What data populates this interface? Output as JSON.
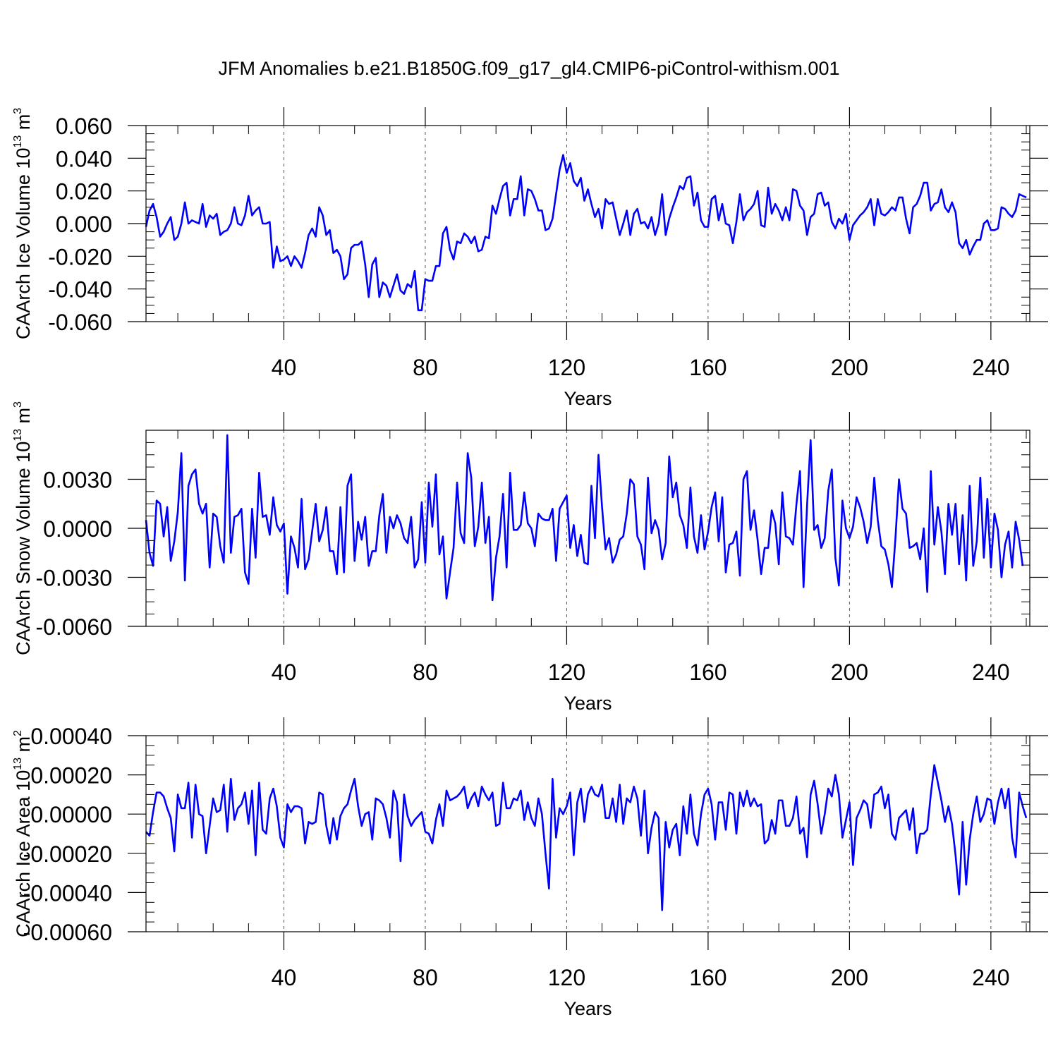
{
  "figure_title": "JFM Anomalies b.e21.B1850G.f09_g17_gl4.CMIP6-piControl-withism.001",
  "chart_data": [
    {
      "type": "line",
      "title": "JFM Anomalies b.e21.B1850G.f09_g17_gl4.CMIP6-piControl-withism.001",
      "xlabel": "Years",
      "ylabel_main": "CAArch Ice Volume 10",
      "ylabel_exp": "13",
      "ylabel_unit": "m",
      "ylabel_unit_exp": "3",
      "xlim": [
        1,
        251
      ],
      "ylim": [
        -0.06,
        0.06
      ],
      "x_ticks": [
        40,
        80,
        120,
        160,
        200,
        240
      ],
      "x_tick_labels": [
        "40",
        "80",
        "120",
        "160",
        "200",
        "240"
      ],
      "y_ticks": [
        -0.06,
        -0.04,
        -0.02,
        0.0,
        0.02,
        0.04,
        0.06
      ],
      "y_tick_labels": [
        "-0.060",
        "-0.040",
        "-0.020",
        "0.000",
        "0.020",
        "0.040",
        "0.060"
      ],
      "line_color": "#0000ff",
      "x_start": 1,
      "values": [
        -0.002,
        0.008,
        0.012,
        0.004,
        -0.008,
        -0.005,
        0.0,
        0.004,
        -0.01,
        -0.008,
        0.0,
        0.013,
        0.0,
        0.002,
        0.001,
        0.0,
        0.012,
        -0.002,
        0.005,
        0.003,
        0.006,
        -0.007,
        -0.005,
        -0.004,
        0.0,
        0.01,
        0.0,
        -0.001,
        0.005,
        0.017,
        0.005,
        0.008,
        0.01,
        0.0,
        0.0,
        0.001,
        -0.027,
        -0.014,
        -0.023,
        -0.022,
        -0.02,
        -0.026,
        -0.02,
        -0.023,
        -0.027,
        -0.018,
        -0.007,
        -0.003,
        -0.008,
        0.01,
        0.005,
        -0.007,
        -0.004,
        -0.018,
        -0.016,
        -0.02,
        -0.034,
        -0.031,
        -0.015,
        -0.013,
        -0.013,
        -0.011,
        -0.025,
        -0.045,
        -0.025,
        -0.021,
        -0.045,
        -0.036,
        -0.038,
        -0.045,
        -0.038,
        -0.031,
        -0.041,
        -0.043,
        -0.037,
        -0.039,
        -0.029,
        -0.053,
        -0.053,
        -0.034,
        -0.035,
        -0.035,
        -0.026,
        -0.026,
        -0.006,
        -0.002,
        -0.016,
        -0.022,
        -0.011,
        -0.012,
        -0.006,
        -0.008,
        -0.012,
        -0.008,
        -0.017,
        -0.016,
        -0.008,
        -0.009,
        0.011,
        0.006,
        0.015,
        0.023,
        0.025,
        0.005,
        0.015,
        0.015,
        0.029,
        0.005,
        0.021,
        0.02,
        0.015,
        0.008,
        0.008,
        -0.004,
        -0.003,
        0.003,
        0.018,
        0.033,
        0.042,
        0.031,
        0.037,
        0.026,
        0.023,
        0.028,
        0.014,
        0.021,
        0.012,
        0.004,
        0.009,
        -0.003,
        0.015,
        0.012,
        0.013,
        0.003,
        -0.007,
        0.0,
        0.008,
        -0.007,
        0.006,
        0.009,
        0.0,
        0.001,
        -0.003,
        0.004,
        -0.007,
        0.0,
        0.018,
        -0.007,
        0.003,
        0.01,
        0.016,
        0.023,
        0.021,
        0.028,
        0.029,
        0.011,
        0.019,
        0.002,
        -0.002,
        -0.002,
        0.015,
        0.017,
        0.002,
        0.012,
        0.0,
        -0.001,
        -0.012,
        0.001,
        0.018,
        0.002,
        0.007,
        0.009,
        0.012,
        0.02,
        -0.001,
        -0.002,
        0.022,
        0.006,
        0.012,
        0.008,
        0.002,
        0.01,
        0.002,
        0.021,
        0.02,
        0.011,
        0.008,
        -0.007,
        0.004,
        0.006,
        0.018,
        0.019,
        0.011,
        0.013,
        0.001,
        -0.003,
        0.003,
        0.0,
        0.006,
        -0.01,
        -0.001,
        0.002,
        0.005,
        0.007,
        0.01,
        0.015,
        -0.001,
        0.015,
        0.006,
        0.005,
        0.007,
        0.01,
        0.008,
        0.016,
        0.016,
        0.003,
        -0.006,
        0.01,
        0.012,
        0.017,
        0.025,
        0.025,
        0.008,
        0.012,
        0.013,
        0.021,
        0.01,
        0.007,
        0.013,
        0.007,
        -0.012,
        -0.015,
        -0.01,
        -0.019,
        -0.014,
        -0.01,
        -0.01,
        0.0,
        0.002,
        -0.004,
        -0.004,
        -0.003,
        0.01,
        0.009,
        0.006,
        0.004,
        0.008,
        0.018,
        0.017,
        0.016
      ]
    },
    {
      "type": "line",
      "xlabel": "Years",
      "ylabel_main": "CAArch Snow Volume 10",
      "ylabel_exp": "13",
      "ylabel_unit": "m",
      "ylabel_unit_exp": "3",
      "xlim": [
        1,
        251
      ],
      "ylim": [
        -0.006,
        0.006
      ],
      "x_ticks": [
        40,
        80,
        120,
        160,
        200,
        240
      ],
      "x_tick_labels": [
        "40",
        "80",
        "120",
        "160",
        "200",
        "240"
      ],
      "y_ticks": [
        -0.006,
        -0.003,
        0.0,
        0.003
      ],
      "y_tick_labels": [
        "-0.0060",
        "-0.0030",
        "0.0000",
        "0.0030"
      ],
      "line_color": "#0000ff",
      "x_start": 1,
      "values": [
        0.0005,
        -0.0015,
        -0.0023,
        0.0017,
        0.0015,
        -0.0005,
        0.0013,
        -0.002,
        -0.0008,
        0.001,
        0.0046,
        -0.0032,
        0.0026,
        0.0033,
        0.0036,
        0.0015,
        0.0009,
        0.0015,
        -0.0024,
        0.0009,
        0.0007,
        -0.0011,
        -0.0021,
        0.0057,
        -0.0015,
        0.0007,
        0.0008,
        0.0012,
        -0.0027,
        -0.0034,
        0.0012,
        -0.0018,
        0.0034,
        0.0007,
        0.0008,
        -0.0004,
        0.0019,
        0.0002,
        -0.0002,
        0.0003,
        -0.004,
        -0.0005,
        -0.0012,
        -0.0024,
        0.0018,
        -0.0025,
        -0.0019,
        -0.0002,
        0.0015,
        -0.0008,
        -0.0001,
        0.0013,
        -0.0014,
        -0.0014,
        -0.0028,
        0.0013,
        -0.0027,
        0.0026,
        0.0033,
        -0.002,
        0.0004,
        -0.0007,
        0.0007,
        -0.0023,
        -0.0014,
        -0.0014,
        0.0008,
        0.0021,
        -0.0015,
        0.0007,
        0.0,
        0.0008,
        0.0003,
        -0.0006,
        -0.0009,
        0.0007,
        -0.0024,
        -0.0019,
        0.0016,
        -0.0021,
        0.0028,
        0.0001,
        0.0033,
        -0.0016,
        -0.0005,
        -0.0043,
        -0.0027,
        -0.0012,
        0.0028,
        -0.0003,
        -0.0009,
        0.0046,
        0.0031,
        -0.0011,
        0.0001,
        0.0028,
        -0.0009,
        0.0007,
        -0.0044,
        -0.0018,
        -0.0005,
        0.0021,
        -0.0024,
        0.0034,
        -0.0001,
        -0.0001,
        0.0002,
        0.0022,
        0.0003,
        0.0,
        -0.0011,
        0.0009,
        0.0006,
        0.0005,
        0.0005,
        0.0012,
        -0.002,
        0.0012,
        0.0016,
        0.002,
        -0.0012,
        0.0002,
        -0.0017,
        -0.0004,
        -0.0021,
        -0.0022,
        0.0026,
        -0.0006,
        0.0045,
        0.0013,
        -0.0013,
        -0.0006,
        -0.0021,
        -0.0016,
        -0.0007,
        -0.0005,
        0.0009,
        0.003,
        0.0027,
        -0.0005,
        -0.001,
        -0.0025,
        0.0031,
        -0.0003,
        0.0005,
        -0.0001,
        -0.0019,
        -0.0009,
        0.0044,
        0.0019,
        0.0028,
        0.0008,
        0.0002,
        -0.0012,
        0.0025,
        -0.0005,
        -0.0015,
        0.0008,
        -0.0013,
        -0.0002,
        0.0013,
        0.0022,
        -0.0008,
        0.0019,
        -0.0027,
        -0.001,
        -0.0009,
        -0.0002,
        -0.0029,
        0.003,
        0.0035,
        -0.0001,
        0.0011,
        -0.0007,
        -0.0028,
        -0.0012,
        -0.0012,
        0.0011,
        0.0003,
        -0.0022,
        0.0022,
        -0.0005,
        -0.0006,
        -0.001,
        0.0015,
        0.0035,
        -0.0036,
        0.0014,
        0.0054,
        -0.0001,
        0.0002,
        -0.0012,
        -0.0006,
        0.0023,
        0.0036,
        -0.0018,
        -0.0035,
        0.0017,
        0.0,
        -0.0006,
        0.0001,
        0.0019,
        0.0013,
        0.0004,
        -0.0009,
        0.0001,
        0.0031,
        0.0005,
        -0.0011,
        -0.0013,
        -0.0022,
        -0.0036,
        -0.0006,
        0.003,
        0.0012,
        0.0009,
        -0.0012,
        -0.0011,
        -0.0009,
        -0.0019,
        0.0,
        -0.0039,
        0.0035,
        -0.001,
        0.0013,
        -0.0002,
        -0.0028,
        0.0015,
        -0.0004,
        0.0015,
        -0.0022,
        0.0008,
        -0.0032,
        0.0026,
        -0.0023,
        -0.0008,
        0.0031,
        -0.0018,
        0.0018,
        -0.0024,
        0.0009,
        -0.0001,
        -0.003,
        -0.001,
        -0.0002,
        -0.0024,
        0.0004,
        -0.0007,
        -0.0023
      ]
    },
    {
      "type": "line",
      "xlabel": "Years",
      "ylabel_main": "CAArch Ice Area 10",
      "ylabel_exp": "13",
      "ylabel_unit": "m",
      "ylabel_unit_exp": "2",
      "xlim": [
        1,
        251
      ],
      "ylim": [
        -0.0006,
        0.0004
      ],
      "x_ticks": [
        40,
        80,
        120,
        160,
        200,
        240
      ],
      "x_tick_labels": [
        "40",
        "80",
        "120",
        "160",
        "200",
        "240"
      ],
      "y_ticks": [
        -0.0006,
        -0.0004,
        -0.0002,
        0.0,
        0.0002,
        0.0004
      ],
      "y_tick_labels": [
        "-0.00060",
        "-0.00040",
        "-0.00020",
        "0.00000",
        "0.00020",
        "0.00040"
      ],
      "line_color": "#0000ff",
      "x_start": 1,
      "values": [
        -9e-05,
        -0.00011,
        1e-05,
        0.00011,
        0.00011,
        9e-05,
        3e-05,
        -2e-05,
        -0.00019,
        0.0001,
        3e-05,
        3e-05,
        0.00016,
        -0.00012,
        0.00015,
        0.0,
        -1e-05,
        -0.0002,
        -6e-05,
        8e-05,
        1e-05,
        2e-05,
        0.00015,
        -9e-05,
        0.00018,
        -3e-05,
        3e-05,
        5e-05,
        0.00011,
        -5e-05,
        0.00012,
        -0.00021,
        0.00016,
        -8e-05,
        -0.0001,
        8e-05,
        0.00013,
        4e-05,
        -0.00012,
        -0.00017,
        5e-05,
        1e-05,
        4e-05,
        4e-05,
        3e-05,
        -0.00015,
        -4e-05,
        -5e-05,
        -4e-05,
        0.00011,
        0.0001,
        -6e-05,
        -0.00015,
        -2e-05,
        -0.00013,
        -1e-05,
        3e-05,
        5e-05,
        0.00012,
        0.00018,
        4e-05,
        -6e-05,
        0.0,
        1e-05,
        -0.00013,
        8e-05,
        7e-05,
        5e-05,
        -2e-05,
        -0.00012,
        0.00012,
        6e-05,
        -0.00024,
        0.0001,
        -1e-05,
        -6e-05,
        -3e-05,
        -1e-05,
        1e-05,
        -9e-05,
        -0.0001,
        -0.00015,
        -3e-05,
        5e-05,
        -6e-05,
        0.00012,
        7e-05,
        8e-05,
        9e-05,
        0.00011,
        0.00014,
        3e-05,
        8e-05,
        0.00011,
        4e-05,
        0.00014,
        0.0001,
        7e-05,
        0.00011,
        -6e-05,
        -5e-05,
        0.00016,
        3e-05,
        3e-05,
        8e-05,
        7e-05,
        0.00012,
        -3e-05,
        6e-05,
        -2e-05,
        -6e-05,
        8e-05,
        -0.0,
        -0.0002,
        -0.00038,
        0.00018,
        -0.00012,
        3e-05,
        0.0,
        4e-05,
        0.00011,
        -0.00021,
        6e-05,
        0.00013,
        -4e-05,
        0.0001,
        0.00014,
        0.0001,
        9e-05,
        0.00015,
        -2e-05,
        -2e-05,
        8e-05,
        -4e-05,
        0.00015,
        -5e-05,
        8e-05,
        6e-05,
        0.00014,
        8e-05,
        -0.00011,
        0.00012,
        -0.0002,
        -7e-05,
        1e-05,
        -2e-05,
        -0.00049,
        -4e-05,
        -0.00017,
        -8e-05,
        -5e-05,
        -0.00021,
        4e-05,
        -0.0001,
        0.0001,
        -0.0001,
        -0.00016,
        0.0,
        0.0001,
        0.00013,
        5e-05,
        -0.00013,
        6e-05,
        6e-05,
        -8e-05,
        0.00011,
        0.0001,
        -0.0001,
        0.00011,
        4e-05,
        0.00012,
        4e-05,
        8e-05,
        4e-05,
        5e-05,
        -0.00015,
        -0.00013,
        -3e-05,
        -0.0001,
        7e-05,
        7e-05,
        -6e-05,
        -6e-05,
        -2e-05,
        9e-05,
        -0.0001,
        -7e-05,
        -0.00022,
        0.0001,
        0.00017,
        5e-05,
        -0.0001,
        0.0,
        0.00013,
        9e-05,
        0.0002,
        0.0001,
        -0.00012,
        -3e-05,
        6e-05,
        -0.00026,
        -2e-05,
        2e-05,
        7e-05,
        5e-05,
        -7e-05,
        0.0001,
        0.00011,
        0.00014,
        3e-05,
        0.0001,
        -0.0001,
        -0.00013,
        -2e-05,
        0.0,
        2e-05,
        -8e-05,
        3e-05,
        -0.0002,
        -0.0001,
        -0.0001,
        -8e-05,
        0.0001,
        0.00025,
        0.00016,
        7e-05,
        -4e-05,
        4e-05,
        -5e-05,
        -0.00021,
        -0.00041,
        -4e-05,
        -0.00036,
        -0.00013,
        0.0,
        9e-05,
        -4e-05,
        0.0,
        8e-05,
        7e-05,
        -5e-05,
        6e-05,
        0.00013,
        3e-05,
        0.00013,
        -0.00012,
        -0.00022,
        0.00011,
        4e-05,
        -2e-05
      ]
    }
  ]
}
